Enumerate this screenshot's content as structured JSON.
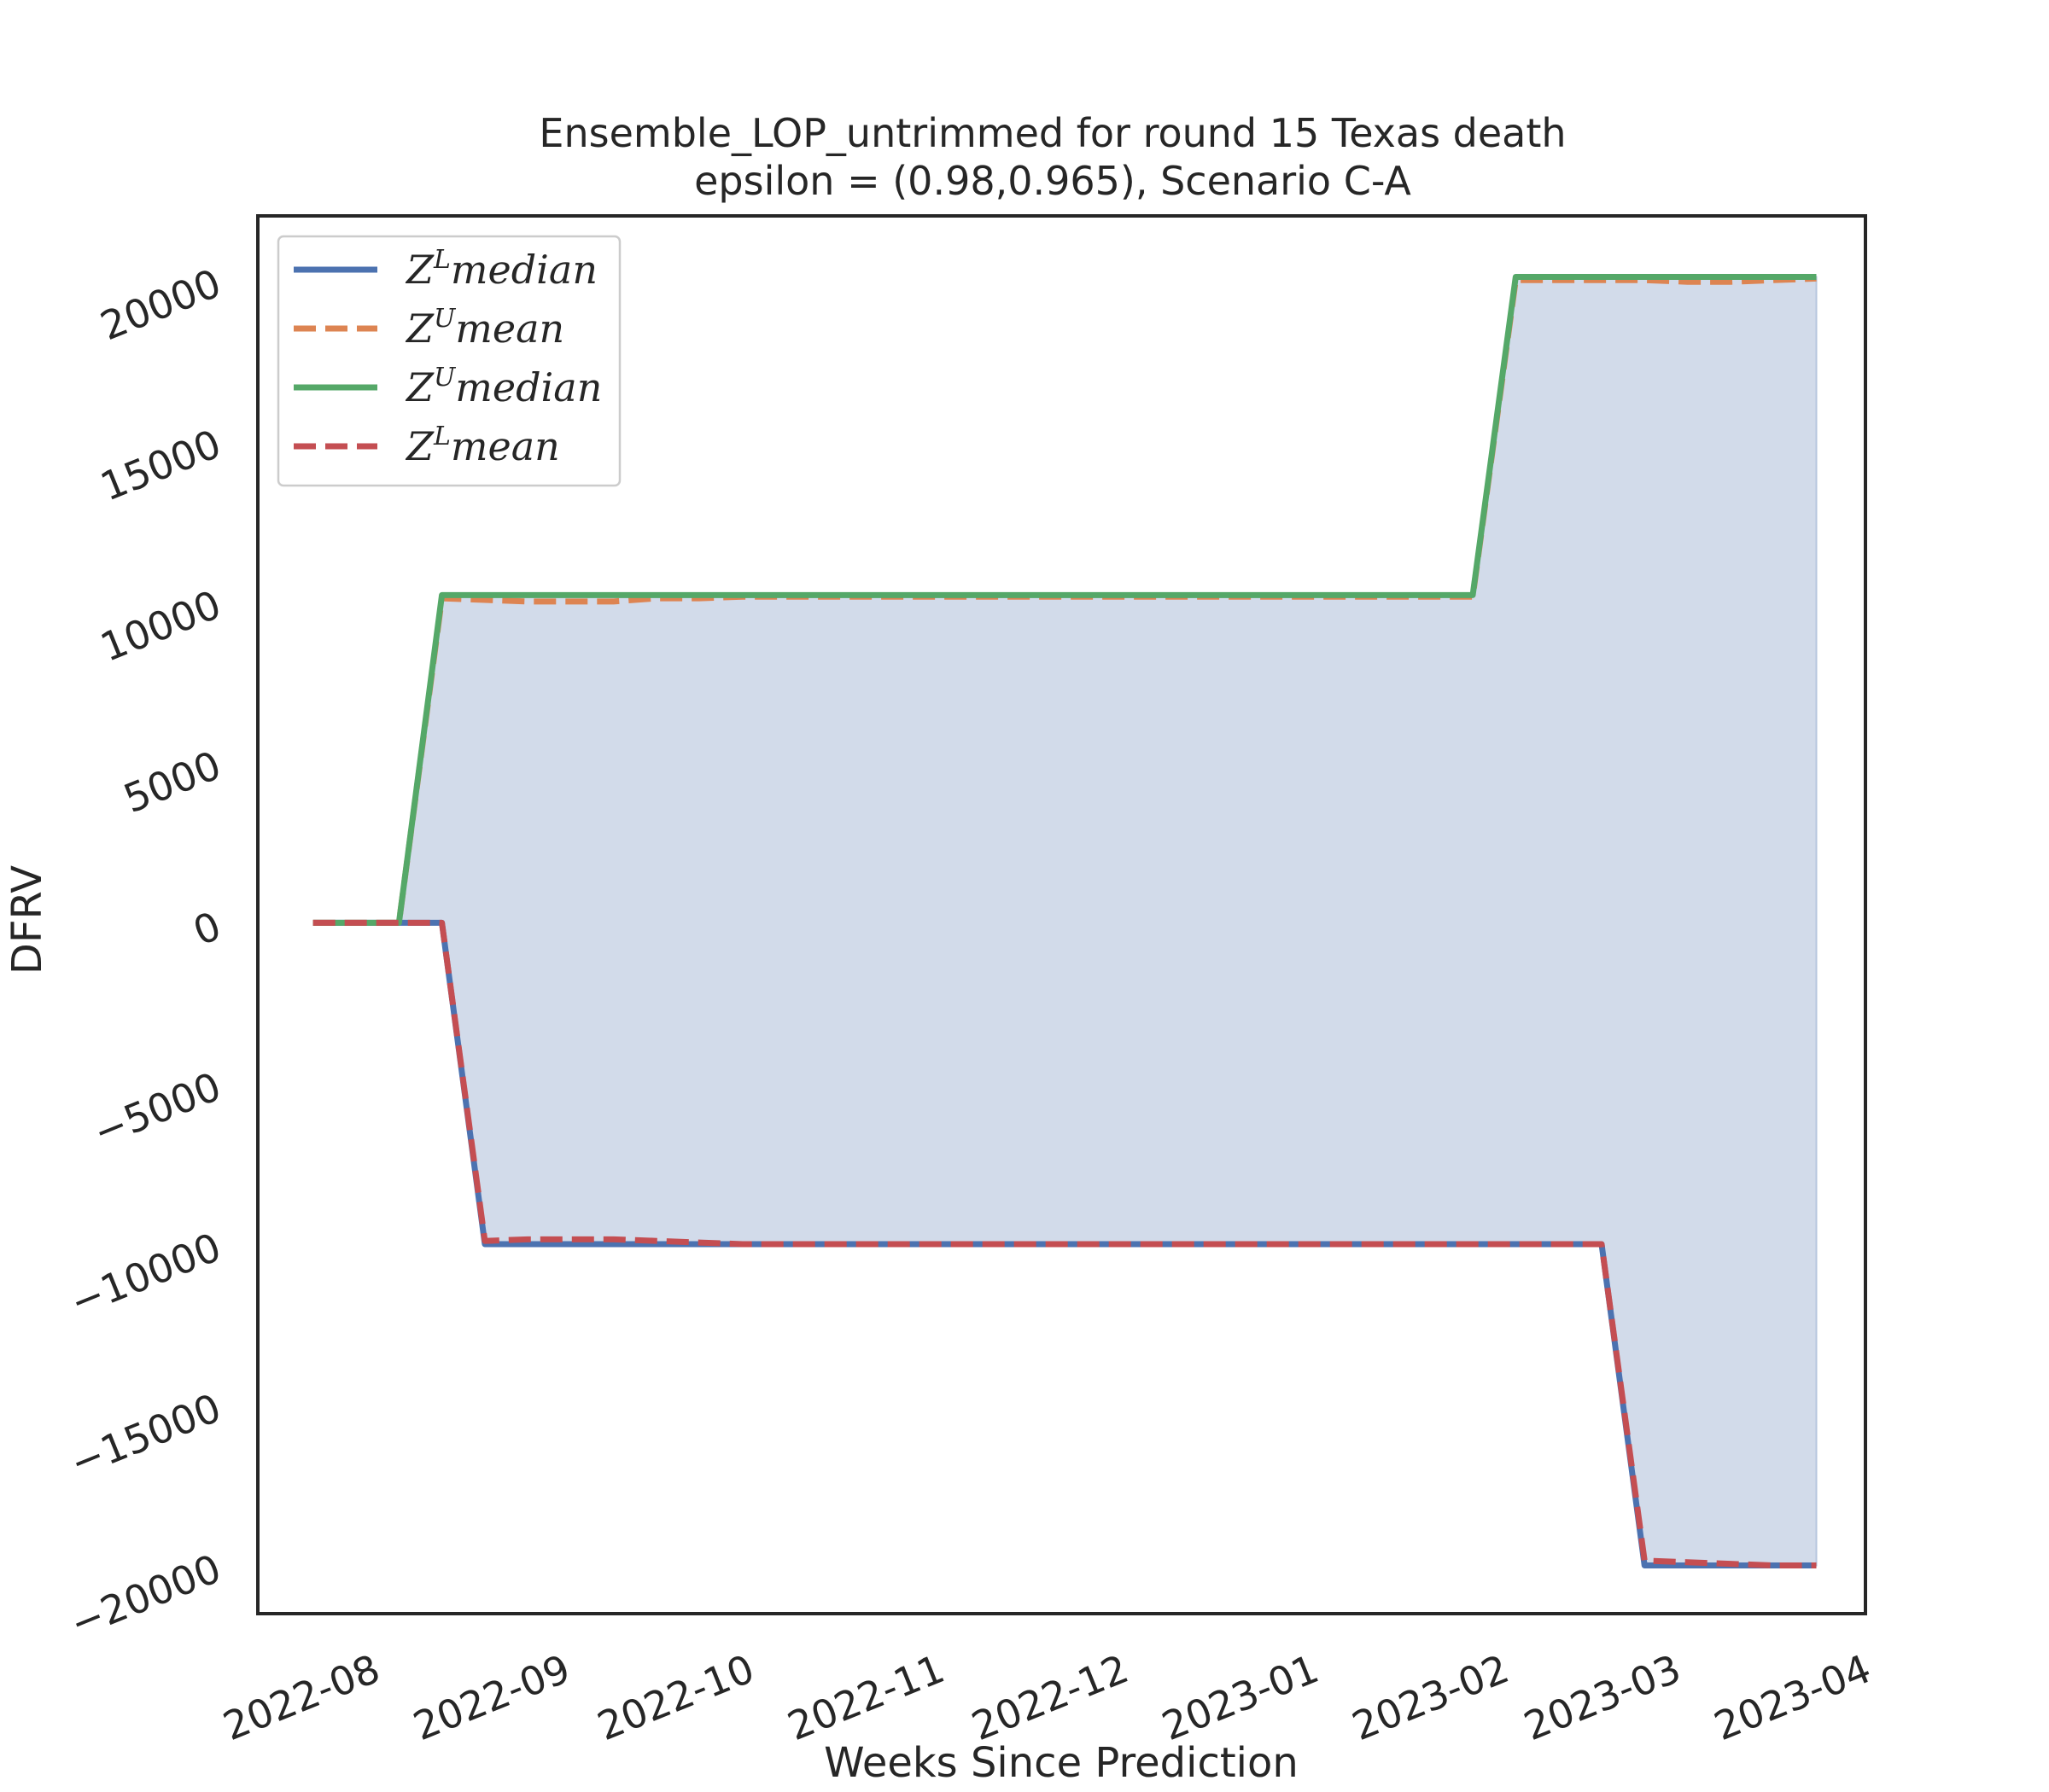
{
  "chart_data": {
    "type": "line",
    "title": "Ensemble_LOP_untrimmed for round 15 Texas  death",
    "subtitle": "epsilon = (0.98,0.965), Scenario C-A",
    "xlabel": "Weeks Since Prediction",
    "ylabel": "DFRV",
    "x_ticks": [
      "2022-08",
      "2022-09",
      "2022-10",
      "2022-11",
      "2022-12",
      "2023-01",
      "2023-02",
      "2023-03",
      "2023-04"
    ],
    "y_ticks": [
      "−20000",
      "−15000",
      "−10000",
      "−5000",
      "0",
      "5000",
      "10000",
      "15000",
      "20000"
    ],
    "y_tick_values": [
      -20000,
      -15000,
      -10000,
      -5000,
      0,
      5000,
      10000,
      15000,
      20000
    ],
    "ylim": [
      -21500,
      22000
    ],
    "xlim": [
      "2022-07-15",
      "2023-04-03"
    ],
    "grid": false,
    "legend_position": "upper-left",
    "x": [
      "2022-07-24",
      "2022-07-31",
      "2022-08-07",
      "2022-08-14",
      "2022-08-21",
      "2022-08-28",
      "2022-09-04",
      "2022-09-11",
      "2022-09-18",
      "2022-09-25",
      "2022-10-02",
      "2022-10-09",
      "2022-10-16",
      "2022-10-23",
      "2022-10-30",
      "2022-11-06",
      "2022-11-13",
      "2022-11-20",
      "2022-11-27",
      "2022-12-04",
      "2022-12-11",
      "2022-12-18",
      "2022-12-25",
      "2023-01-01",
      "2023-01-08",
      "2023-01-15",
      "2023-01-22",
      "2023-01-29",
      "2023-02-05",
      "2023-02-12",
      "2023-02-19",
      "2023-02-26",
      "2023-03-05",
      "2023-03-12",
      "2023-03-19",
      "2023-03-26"
    ],
    "fill_between": {
      "lower": "Z^L median",
      "upper": "Z^U median",
      "color": "#d2dbea"
    },
    "series": [
      {
        "name": "Z^L median",
        "legend_base": "Z",
        "legend_sup": "L",
        "legend_rest": "median",
        "color": "#4c72b0",
        "style": "solid",
        "values": [
          0,
          0,
          0,
          0,
          -10000,
          -10000,
          -10000,
          -10000,
          -10000,
          -10000,
          -10000,
          -10000,
          -10000,
          -10000,
          -10000,
          -10000,
          -10000,
          -10000,
          -10000,
          -10000,
          -10000,
          -10000,
          -10000,
          -10000,
          -10000,
          -10000,
          -10000,
          -10000,
          -10000,
          -10000,
          -10000,
          -20000,
          -20000,
          -20000,
          -20000,
          -20000
        ]
      },
      {
        "name": "Z^U mean",
        "legend_base": "Z",
        "legend_sup": "U",
        "legend_rest": "mean",
        "color": "#dd8452",
        "style": "dashed",
        "values": [
          0,
          0,
          0,
          10100,
          10050,
          10000,
          10000,
          10000,
          10100,
          10100,
          10150,
          10150,
          10150,
          10150,
          10150,
          10150,
          10150,
          10150,
          10150,
          10150,
          10150,
          10150,
          10150,
          10150,
          10150,
          10150,
          10150,
          10150,
          20000,
          20000,
          20000,
          20000,
          19950,
          19950,
          20000,
          20050
        ]
      },
      {
        "name": "Z^U median",
        "legend_base": "Z",
        "legend_sup": "U",
        "legend_rest": "median",
        "color": "#55a868",
        "style": "solid",
        "values": [
          0,
          0,
          0,
          10200,
          10200,
          10200,
          10200,
          10200,
          10200,
          10200,
          10200,
          10200,
          10200,
          10200,
          10200,
          10200,
          10200,
          10200,
          10200,
          10200,
          10200,
          10200,
          10200,
          10200,
          10200,
          10200,
          10200,
          10200,
          20100,
          20100,
          20100,
          20100,
          20100,
          20100,
          20100,
          20100
        ]
      },
      {
        "name": "Z^L mean",
        "legend_base": "Z",
        "legend_sup": "L",
        "legend_rest": "mean",
        "color": "#c44e52",
        "style": "dashed",
        "values": [
          0,
          0,
          0,
          0,
          -9900,
          -9850,
          -9850,
          -9850,
          -9900,
          -9950,
          -10000,
          -10000,
          -10000,
          -10000,
          -10000,
          -10000,
          -10000,
          -10000,
          -10000,
          -10000,
          -10000,
          -10000,
          -10000,
          -10000,
          -10000,
          -10000,
          -10000,
          -10000,
          -10000,
          -10000,
          -10000,
          -19850,
          -19900,
          -19950,
          -20000,
          -20000
        ]
      }
    ]
  }
}
